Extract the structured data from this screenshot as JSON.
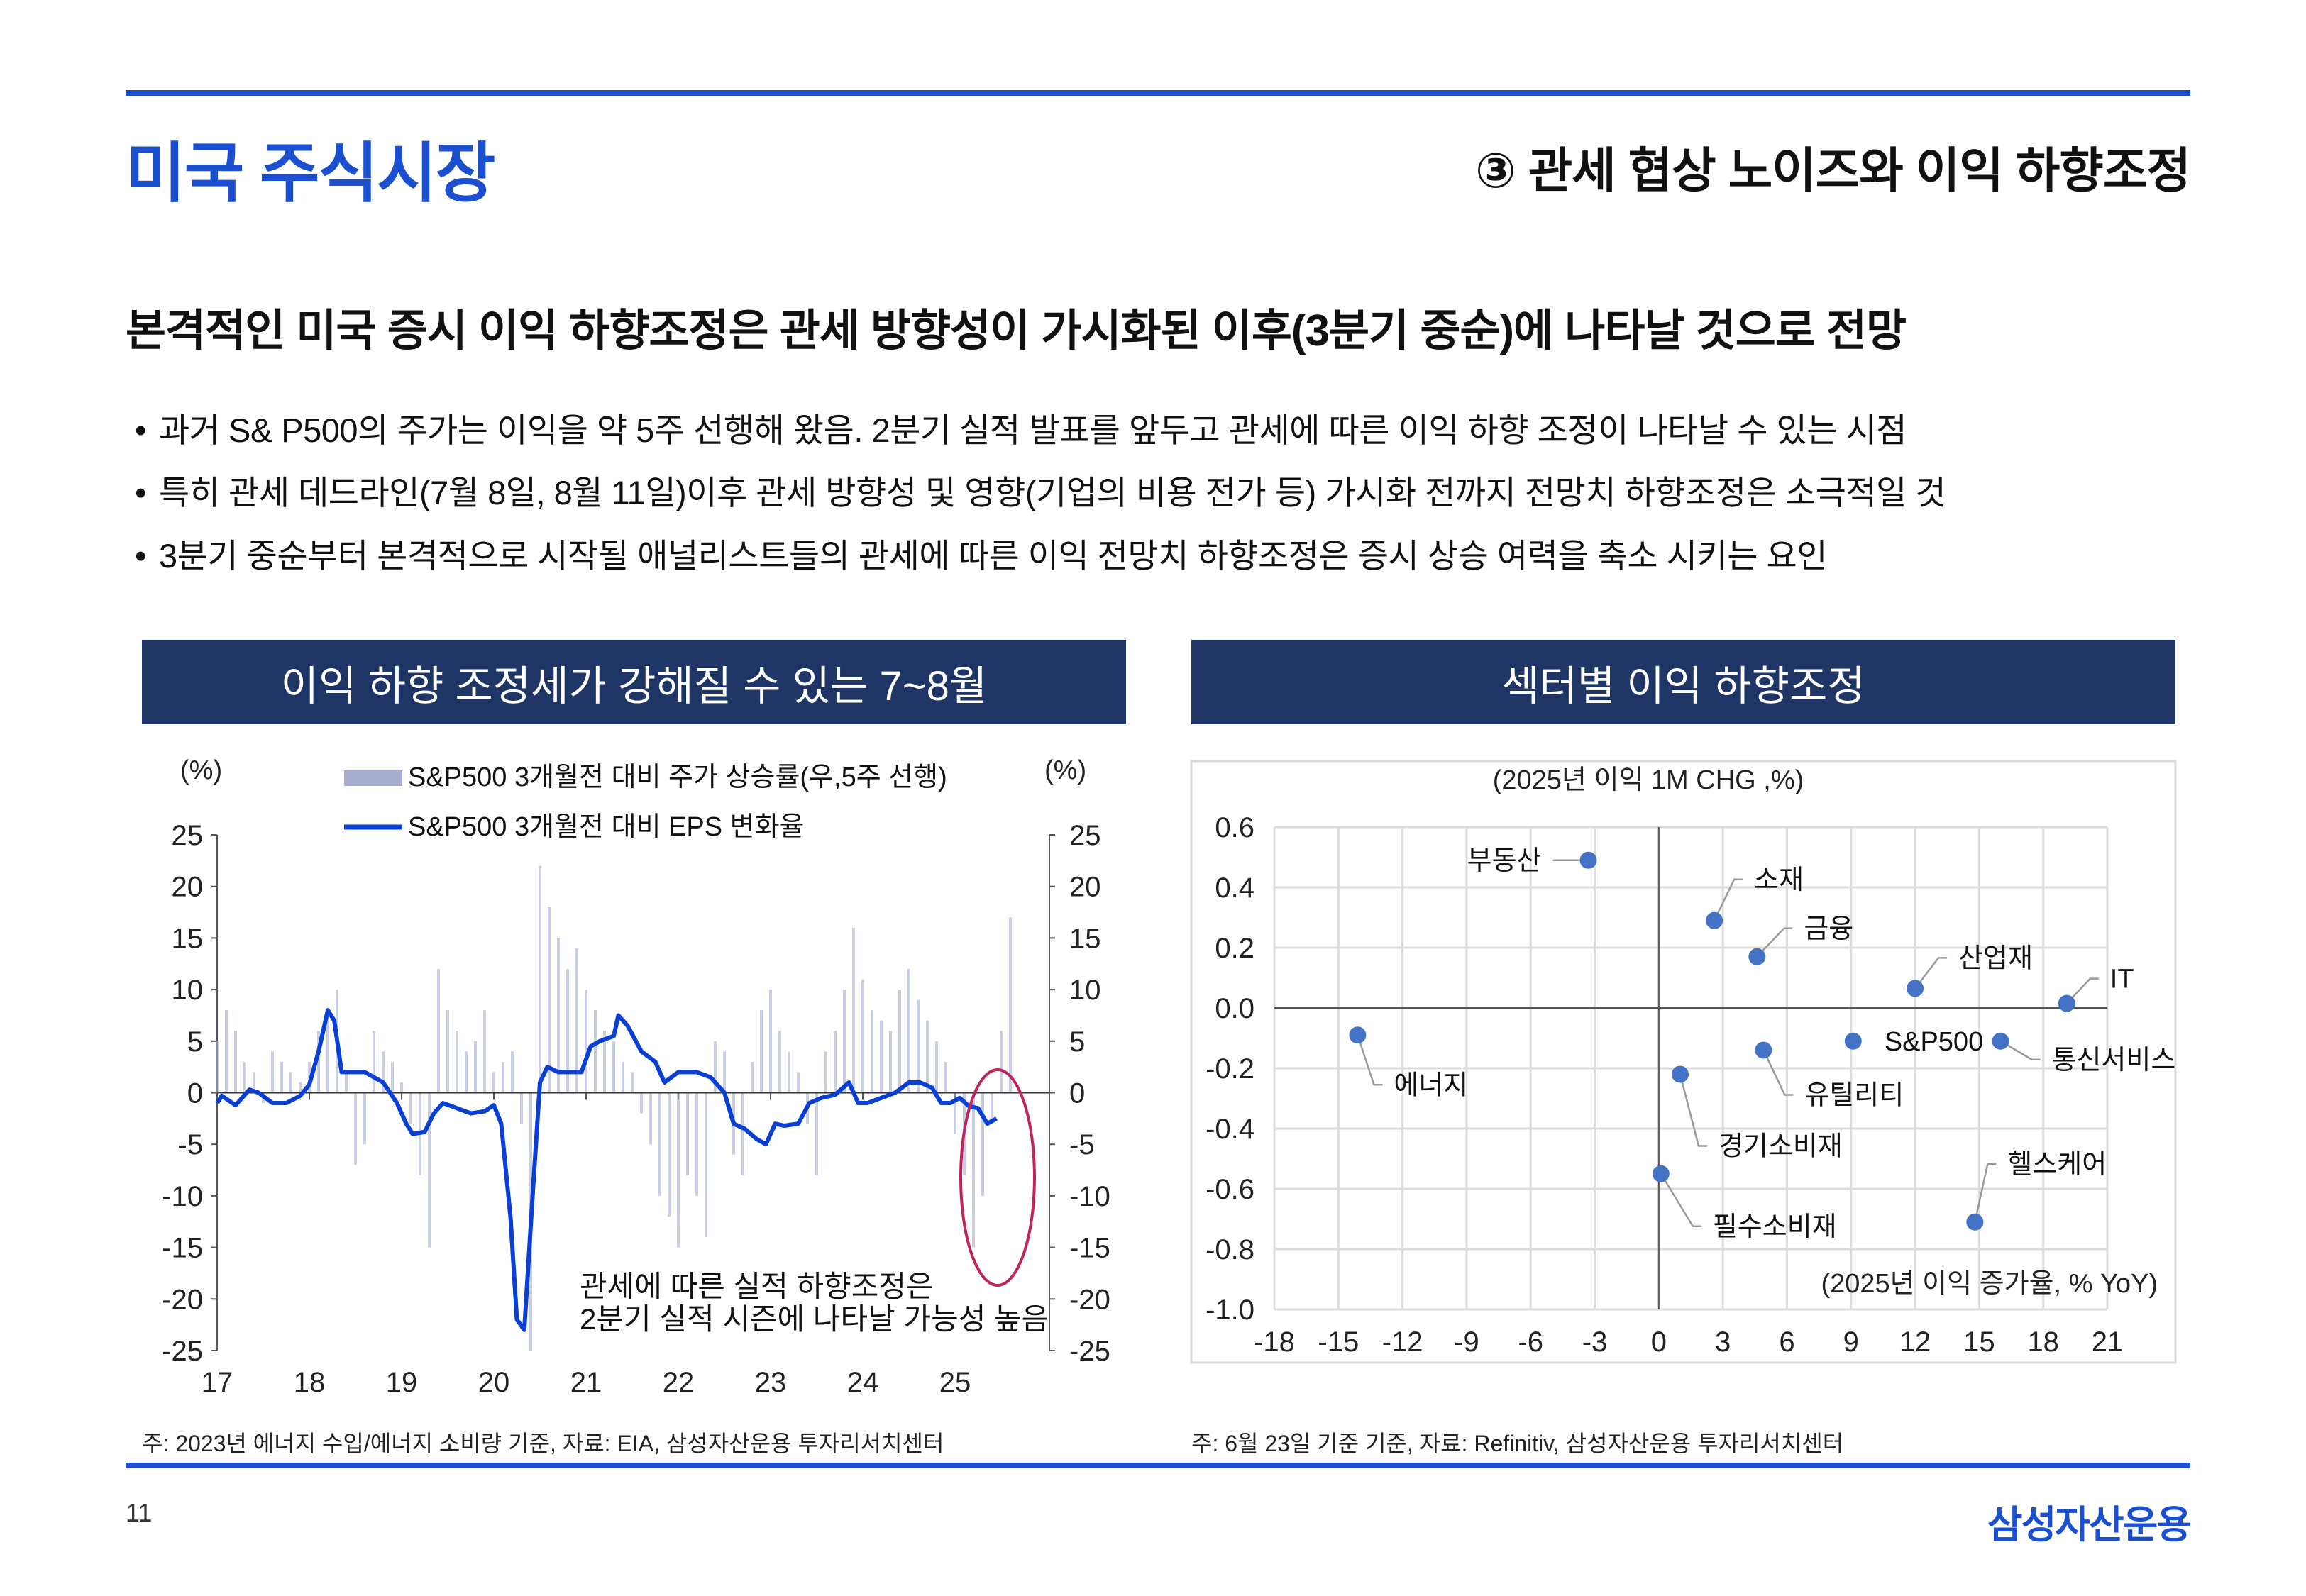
{
  "header": {
    "title": "미국 주식시장",
    "section": "③ 관세 협상 노이즈와 이익 하향조정"
  },
  "headline": "본격적인 미국 증시 이익 하향조정은 관세 방향성이 가시화된 이후(3분기 중순)에 나타날 것으로 전망",
  "bullets": [
    "과거 S& P500의 주가는 이익을 약 5주 선행해 왔음. 2분기 실적 발표를 앞두고 관세에 따른 이익 하향 조정이 나타날 수 있는 시점",
    "특히 관세 데드라인(7월 8일, 8월 11일)이후 관세 방향성 및 영향(기업의 비용 전가 등) 가시화 전까지 전망치 하향조정은 소극적일 것",
    "3분기 중순부터 본격적으로 시작될 애널리스트들의 관세에 따른 이익 전망치 하향조정은 증시 상승 여력을 축소 시키는 요인"
  ],
  "footer": {
    "left_note": "주: 2023년 에너지 수입/에너지 소비량 기준, 자료: EIA, 삼성자산운용 투자리서치센터",
    "right_note": "주: 6월 23일 기준 기준, 자료: Refinitiv, 삼성자산운용 투자리서치센터",
    "page": "11",
    "logo": "삼성자산운용"
  },
  "colors": {
    "brand": "#1a4fd0",
    "navy": "#1f3566",
    "line": "#0a3fd6",
    "bar": "#a7aed0",
    "dot": "#4472c4",
    "ellipse": "#c0245c"
  },
  "chart_data": [
    {
      "type": "line",
      "header": "이익 하향 조정세가 강해질 수 있는 7~8월",
      "yunit_left": "(%)",
      "yunit_right": "(%)",
      "ylim": [
        -25,
        25
      ],
      "yticks": [
        25,
        20,
        15,
        10,
        5,
        0,
        -5,
        -10,
        -15,
        -20,
        -25
      ],
      "xticks": [
        "17",
        "18",
        "19",
        "20",
        "21",
        "22",
        "23",
        "24",
        "25"
      ],
      "annotation": [
        "관세에 따른 실적 하향조정은",
        "2분기 실적 시즌에 나타날 가능성 높음"
      ],
      "series": [
        {
          "name": "S&P500 3개월전 대비 주가 상승률(우,5주 선행)",
          "kind": "bar",
          "x_start": 2017.0,
          "x_step": 0.1,
          "values": [
            5,
            8,
            6,
            3,
            2,
            -1,
            4,
            3,
            2,
            1,
            3,
            6,
            8,
            10,
            2,
            -7,
            -5,
            6,
            4,
            3,
            1,
            -3,
            -8,
            -15,
            12,
            8,
            6,
            4,
            5,
            8,
            2,
            3,
            4,
            -3,
            -25,
            22,
            18,
            15,
            12,
            14,
            10,
            8,
            6,
            5,
            3,
            2,
            -2,
            -5,
            -10,
            -12,
            -15,
            -8,
            -10,
            -14,
            5,
            4,
            -6,
            -8,
            3,
            8,
            10,
            6,
            4,
            2,
            -3,
            -8,
            4,
            6,
            10,
            16,
            11,
            8,
            7,
            6,
            10,
            12,
            9,
            7,
            5,
            3,
            -4,
            -8,
            -15,
            -10,
            -3,
            6,
            17
          ]
        },
        {
          "name": "S&P500 3개월전 대비 EPS 변화율",
          "kind": "line",
          "x": [
            2017.0,
            2017.05,
            2017.2,
            2017.35,
            2017.45,
            2017.6,
            2017.75,
            2017.9,
            2018.0,
            2018.1,
            2018.2,
            2018.27,
            2018.35,
            2018.6,
            2018.8,
            2018.95,
            2019.05,
            2019.12,
            2019.25,
            2019.35,
            2019.45,
            2019.6,
            2019.75,
            2019.9,
            2020.0,
            2020.08,
            2020.18,
            2020.25,
            2020.33,
            2020.42,
            2020.5,
            2020.58,
            2020.7,
            2020.85,
            2020.95,
            2021.05,
            2021.15,
            2021.3,
            2021.35,
            2021.45,
            2021.6,
            2021.75,
            2021.85,
            2022.0,
            2022.2,
            2022.35,
            2022.5,
            2022.6,
            2022.72,
            2022.85,
            2022.95,
            2023.05,
            2023.15,
            2023.3,
            2023.42,
            2023.55,
            2023.7,
            2023.85,
            2023.95,
            2024.05,
            2024.2,
            2024.35,
            2024.5,
            2024.62,
            2024.75,
            2024.85,
            2024.95,
            2025.05,
            2025.15,
            2025.25,
            2025.35,
            2025.45
          ],
          "values": [
            -1,
            -0.3,
            -1.2,
            0.3,
            0,
            -1,
            -1,
            -0.3,
            0.8,
            4,
            8,
            7,
            2,
            2,
            1,
            -1,
            -3,
            -4,
            -3.8,
            -2,
            -1,
            -1.5,
            -2,
            -1.8,
            -1.2,
            -3,
            -12,
            -22,
            -23,
            -10,
            1,
            2.5,
            2,
            2,
            2,
            4.5,
            5,
            5.5,
            7.5,
            6.5,
            4,
            3,
            1,
            2,
            2,
            1.5,
            0,
            -3,
            -3.5,
            -4.5,
            -5,
            -3,
            -3.2,
            -3,
            -1,
            -0.5,
            -0.2,
            1,
            -1,
            -1,
            -0.5,
            0,
            1,
            1,
            0.5,
            -1,
            -1,
            -0.5,
            -1.3,
            -1.5,
            -3,
            -2.5
          ]
        }
      ]
    },
    {
      "type": "scatter",
      "header": "섹터별 이익 하향조정",
      "title": "(2025년 이익 1M CHG ,%)",
      "xlabel": "(2025년 이익 증가율, % YoY)",
      "xlim": [
        -18,
        21
      ],
      "ylim": [
        -1.0,
        0.6
      ],
      "xticks": [
        "-18",
        "-15",
        "-12",
        "-9",
        "-6",
        "-3",
        "0",
        "3",
        "6",
        "9",
        "12",
        "15",
        "18",
        "21"
      ],
      "yticks": [
        "0.6",
        "0.4",
        "0.2",
        "0.0",
        "-0.2",
        "-0.4",
        "-0.6",
        "-0.8",
        "-1.0"
      ],
      "points": [
        {
          "label": "부동산",
          "x": -3.3,
          "y": 0.49
        },
        {
          "label": "소재",
          "x": 2.6,
          "y": 0.29
        },
        {
          "label": "금융",
          "x": 4.6,
          "y": 0.17
        },
        {
          "label": "산업재",
          "x": 12.0,
          "y": 0.065
        },
        {
          "label": "IT",
          "x": 19.1,
          "y": 0.015
        },
        {
          "label": "에너지",
          "x": -14.1,
          "y": -0.09
        },
        {
          "label": "S&P500",
          "x": 9.1,
          "y": -0.11
        },
        {
          "label": "통신서비스",
          "x": 16.0,
          "y": -0.11
        },
        {
          "label": "유틸리티",
          "x": 4.9,
          "y": -0.14
        },
        {
          "label": "경기소비재",
          "x": 1.0,
          "y": -0.22
        },
        {
          "label": "필수소비재",
          "x": 0.1,
          "y": -0.55
        },
        {
          "label": "헬스케어",
          "x": 14.8,
          "y": -0.71
        }
      ]
    }
  ]
}
